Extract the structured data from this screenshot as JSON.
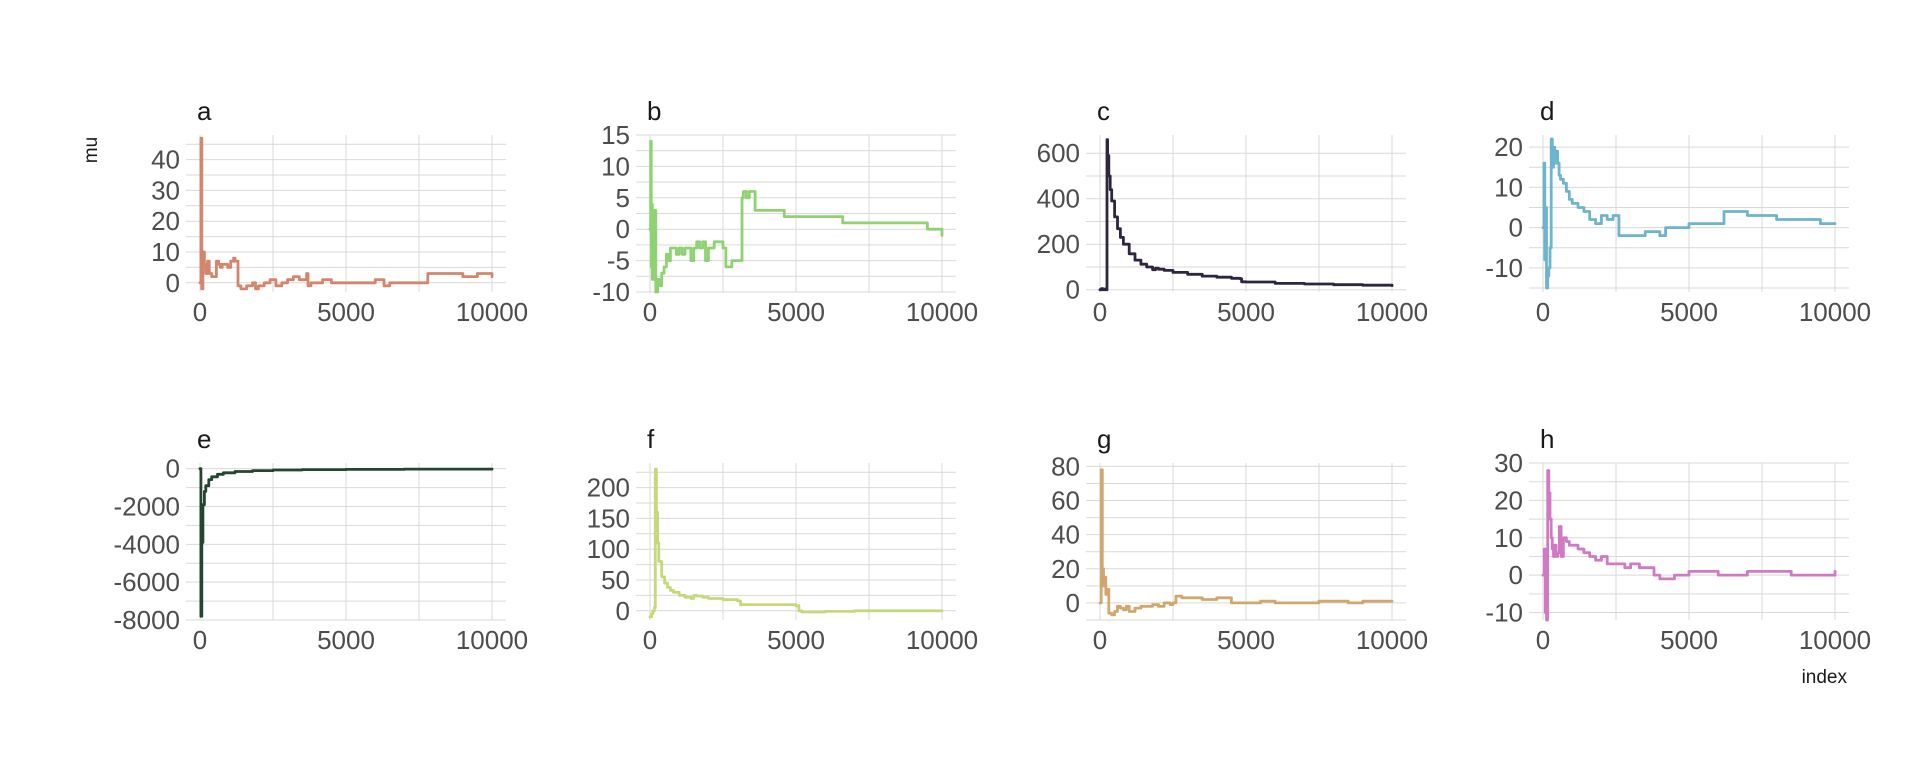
{
  "figure": {
    "xlabel": "index",
    "ylabel": "mu"
  },
  "chart_data": [
    {
      "type": "line",
      "title": "a",
      "color": "#d4866d",
      "xlim": [
        0,
        10000
      ],
      "ylim": [
        -3,
        48
      ],
      "xticks": [
        0,
        5000,
        10000
      ],
      "yticks": [
        0,
        10,
        20,
        30,
        40
      ],
      "x": [
        0,
        30,
        60,
        100,
        150,
        200,
        260,
        320,
        400,
        480,
        560,
        640,
        700,
        760,
        850,
        950,
        1050,
        1150,
        1200,
        1300,
        1400,
        1500,
        1600,
        1700,
        1800,
        1900,
        2000,
        2200,
        2400,
        2600,
        2800,
        3000,
        3200,
        3400,
        3600,
        3650,
        3700,
        3800,
        4000,
        4200,
        4500,
        5000,
        5500,
        6000,
        6200,
        6300,
        6500,
        7000,
        7500,
        7700,
        7800,
        7900,
        8200,
        8500,
        9000,
        9500,
        10000
      ],
      "y": [
        0,
        47,
        -2,
        10,
        6,
        3,
        7,
        3,
        2,
        2,
        7,
        6,
        5,
        6,
        6,
        5,
        7,
        8,
        7,
        -1,
        -2,
        -2,
        -1,
        -1,
        0,
        -2,
        -1,
        0,
        1,
        -1,
        0,
        1,
        2,
        1,
        1,
        3,
        -1,
        0,
        0,
        1,
        0,
        0,
        0,
        1,
        1,
        -1,
        0,
        0,
        0,
        0,
        3,
        3,
        3,
        3,
        2,
        3,
        2
      ]
    },
    {
      "type": "line",
      "title": "b",
      "color": "#8ed272",
      "xlim": [
        0,
        10000
      ],
      "ylim": [
        -10,
        15
      ],
      "xticks": [
        0,
        5000,
        10000
      ],
      "yticks": [
        -10,
        -5,
        0,
        5,
        10,
        15
      ],
      "x": [
        0,
        20,
        40,
        60,
        80,
        120,
        160,
        200,
        260,
        320,
        400,
        480,
        560,
        640,
        700,
        800,
        900,
        1000,
        1100,
        1200,
        1300,
        1400,
        1500,
        1600,
        1700,
        1800,
        1900,
        2000,
        2200,
        2400,
        2500,
        2600,
        2700,
        2800,
        3000,
        3100,
        3150,
        3200,
        3300,
        3400,
        3500,
        3600,
        3800,
        4200,
        4600,
        5000,
        5400,
        5800,
        6200,
        6500,
        6600,
        7000,
        7500,
        8000,
        8500,
        9000,
        9500,
        9800,
        9900,
        10000
      ],
      "y": [
        0,
        14,
        -6,
        4,
        -8,
        0,
        3,
        -10,
        -8,
        -9,
        -7,
        -6,
        -4,
        -5,
        -3,
        -3,
        -4,
        -3,
        -4,
        -3,
        -3,
        -5,
        -3,
        -2,
        -3,
        -2,
        -5,
        -3,
        -2,
        -2,
        -3,
        -6,
        -6,
        -5,
        -5,
        -5,
        5,
        6,
        5,
        6,
        6,
        3,
        3,
        3,
        2,
        2,
        2,
        2,
        2,
        2,
        1,
        1,
        1,
        1,
        1,
        1,
        0,
        0,
        0,
        -1
      ]
    },
    {
      "type": "line",
      "title": "c",
      "color": "#2e2541",
      "xlim": [
        0,
        10000
      ],
      "ylim": [
        -10,
        680
      ],
      "xticks": [
        0,
        5000,
        10000
      ],
      "yticks": [
        0,
        200,
        400,
        600
      ],
      "x": [
        0,
        50,
        100,
        150,
        200,
        240,
        260,
        300,
        350,
        400,
        500,
        600,
        700,
        800,
        1000,
        1200,
        1400,
        1600,
        1800,
        1900,
        2000,
        2200,
        2500,
        3000,
        3500,
        4000,
        4500,
        4800,
        4850,
        5000,
        6000,
        7000,
        8000,
        9000,
        10000
      ],
      "y": [
        0,
        5,
        0,
        3,
        0,
        660,
        590,
        500,
        440,
        390,
        320,
        268,
        230,
        200,
        158,
        130,
        112,
        100,
        88,
        95,
        90,
        85,
        76,
        68,
        60,
        55,
        50,
        48,
        35,
        34,
        28,
        25,
        22,
        20,
        18
      ]
    },
    {
      "type": "line",
      "title": "d",
      "color": "#6cb5cc",
      "xlim": [
        0,
        10000
      ],
      "ylim": [
        -16,
        23
      ],
      "xticks": [
        0,
        5000,
        10000
      ],
      "yticks": [
        -10,
        0,
        10,
        20
      ],
      "x": [
        0,
        30,
        60,
        90,
        120,
        160,
        200,
        240,
        280,
        320,
        360,
        400,
        450,
        500,
        550,
        600,
        700,
        800,
        900,
        1000,
        1200,
        1400,
        1600,
        1800,
        2000,
        2200,
        2400,
        2600,
        2800,
        3000,
        3500,
        4000,
        4200,
        4500,
        5000,
        5500,
        6000,
        6200,
        6400,
        7000,
        7500,
        8000,
        8500,
        9000,
        9500,
        10000
      ],
      "y": [
        0,
        16,
        -8,
        5,
        -15,
        -12,
        -10,
        -5,
        22,
        15,
        20,
        16,
        19,
        16,
        13,
        12,
        11,
        9,
        7,
        6,
        5,
        4,
        2,
        1,
        3,
        2,
        3,
        -2,
        -2,
        -2,
        -1,
        -2,
        0,
        0,
        1,
        1,
        1,
        4,
        4,
        3,
        3,
        2,
        2,
        2,
        1,
        1
      ]
    },
    {
      "type": "line",
      "title": "e",
      "color": "#24452f",
      "xlim": [
        0,
        10000
      ],
      "ylim": [
        -8000,
        300
      ],
      "xticks": [
        0,
        5000,
        10000
      ],
      "yticks": [
        -8000,
        -6000,
        -4000,
        -2000,
        0
      ],
      "x": [
        0,
        30,
        60,
        100,
        150,
        200,
        300,
        400,
        600,
        800,
        1200,
        1800,
        2500,
        3500,
        5000,
        7000,
        10000
      ],
      "y": [
        0,
        -7800,
        -3900,
        -1900,
        -1200,
        -900,
        -580,
        -430,
        -300,
        -220,
        -150,
        -100,
        -70,
        -50,
        -36,
        -25,
        -18
      ]
    },
    {
      "type": "line",
      "title": "f",
      "color": "#c5d97a",
      "xlim": [
        0,
        10000
      ],
      "ylim": [
        -15,
        240
      ],
      "xticks": [
        0,
        5000,
        10000
      ],
      "yticks": [
        0,
        50,
        100,
        150,
        200
      ],
      "x": [
        0,
        50,
        100,
        150,
        180,
        220,
        260,
        300,
        400,
        500,
        600,
        700,
        800,
        1000,
        1200,
        1400,
        1500,
        1600,
        1800,
        2000,
        2500,
        3000,
        3100,
        3500,
        4000,
        4200,
        5000,
        5100,
        5200,
        6000,
        7000,
        8000,
        9000,
        10000
      ],
      "y": [
        -10,
        -5,
        0,
        5,
        230,
        160,
        110,
        80,
        55,
        45,
        38,
        33,
        30,
        25,
        22,
        20,
        25,
        24,
        22,
        20,
        18,
        16,
        10,
        10,
        10,
        10,
        8,
        0,
        -2,
        -1,
        0,
        0,
        0,
        0
      ]
    },
    {
      "type": "line",
      "title": "g",
      "color": "#d2a76d",
      "xlim": [
        0,
        10000
      ],
      "ylim": [
        -10,
        82
      ],
      "xticks": [
        0,
        5000,
        10000
      ],
      "yticks": [
        0,
        20,
        40,
        60,
        80
      ],
      "x": [
        0,
        40,
        80,
        120,
        160,
        200,
        260,
        300,
        400,
        500,
        600,
        700,
        800,
        900,
        1000,
        1200,
        1400,
        1600,
        1800,
        2000,
        2200,
        2400,
        2500,
        2600,
        2800,
        3000,
        3500,
        4000,
        4500,
        5000,
        5500,
        6000,
        6500,
        7000,
        7500,
        8000,
        8500,
        9000,
        9500,
        10000
      ],
      "y": [
        0,
        78,
        20,
        10,
        15,
        5,
        8,
        -6,
        -7,
        -5,
        -2,
        -3,
        -4,
        -2,
        -5,
        -3,
        -2,
        -2,
        -1,
        -2,
        0,
        -1,
        0,
        4,
        3,
        3,
        2,
        3,
        0,
        0,
        1,
        0,
        0,
        0,
        1,
        1,
        0,
        1,
        1,
        1
      ]
    },
    {
      "type": "line",
      "title": "h",
      "color": "#d17ac3",
      "xlim": [
        0,
        10000
      ],
      "ylim": [
        -12,
        30
      ],
      "xticks": [
        0,
        5000,
        10000
      ],
      "yticks": [
        -10,
        0,
        10,
        20,
        30
      ],
      "x": [
        0,
        40,
        80,
        120,
        160,
        200,
        240,
        280,
        320,
        360,
        400,
        450,
        500,
        560,
        620,
        700,
        800,
        900,
        1000,
        1200,
        1400,
        1600,
        1800,
        2000,
        2200,
        2500,
        2800,
        3000,
        3300,
        3500,
        3800,
        4000,
        4500,
        5000,
        5500,
        6000,
        6500,
        7000,
        7500,
        8000,
        8500,
        9000,
        9500,
        10000
      ],
      "y": [
        0,
        7,
        -10,
        -12,
        28,
        22,
        15,
        10,
        7,
        5,
        8,
        5,
        6,
        13,
        5,
        10,
        9,
        8,
        8,
        7,
        6,
        5,
        4,
        5,
        3,
        3,
        2,
        3,
        2,
        2,
        0,
        -1,
        0,
        1,
        1,
        0,
        0,
        1,
        1,
        1,
        0,
        0,
        0,
        1
      ]
    }
  ]
}
